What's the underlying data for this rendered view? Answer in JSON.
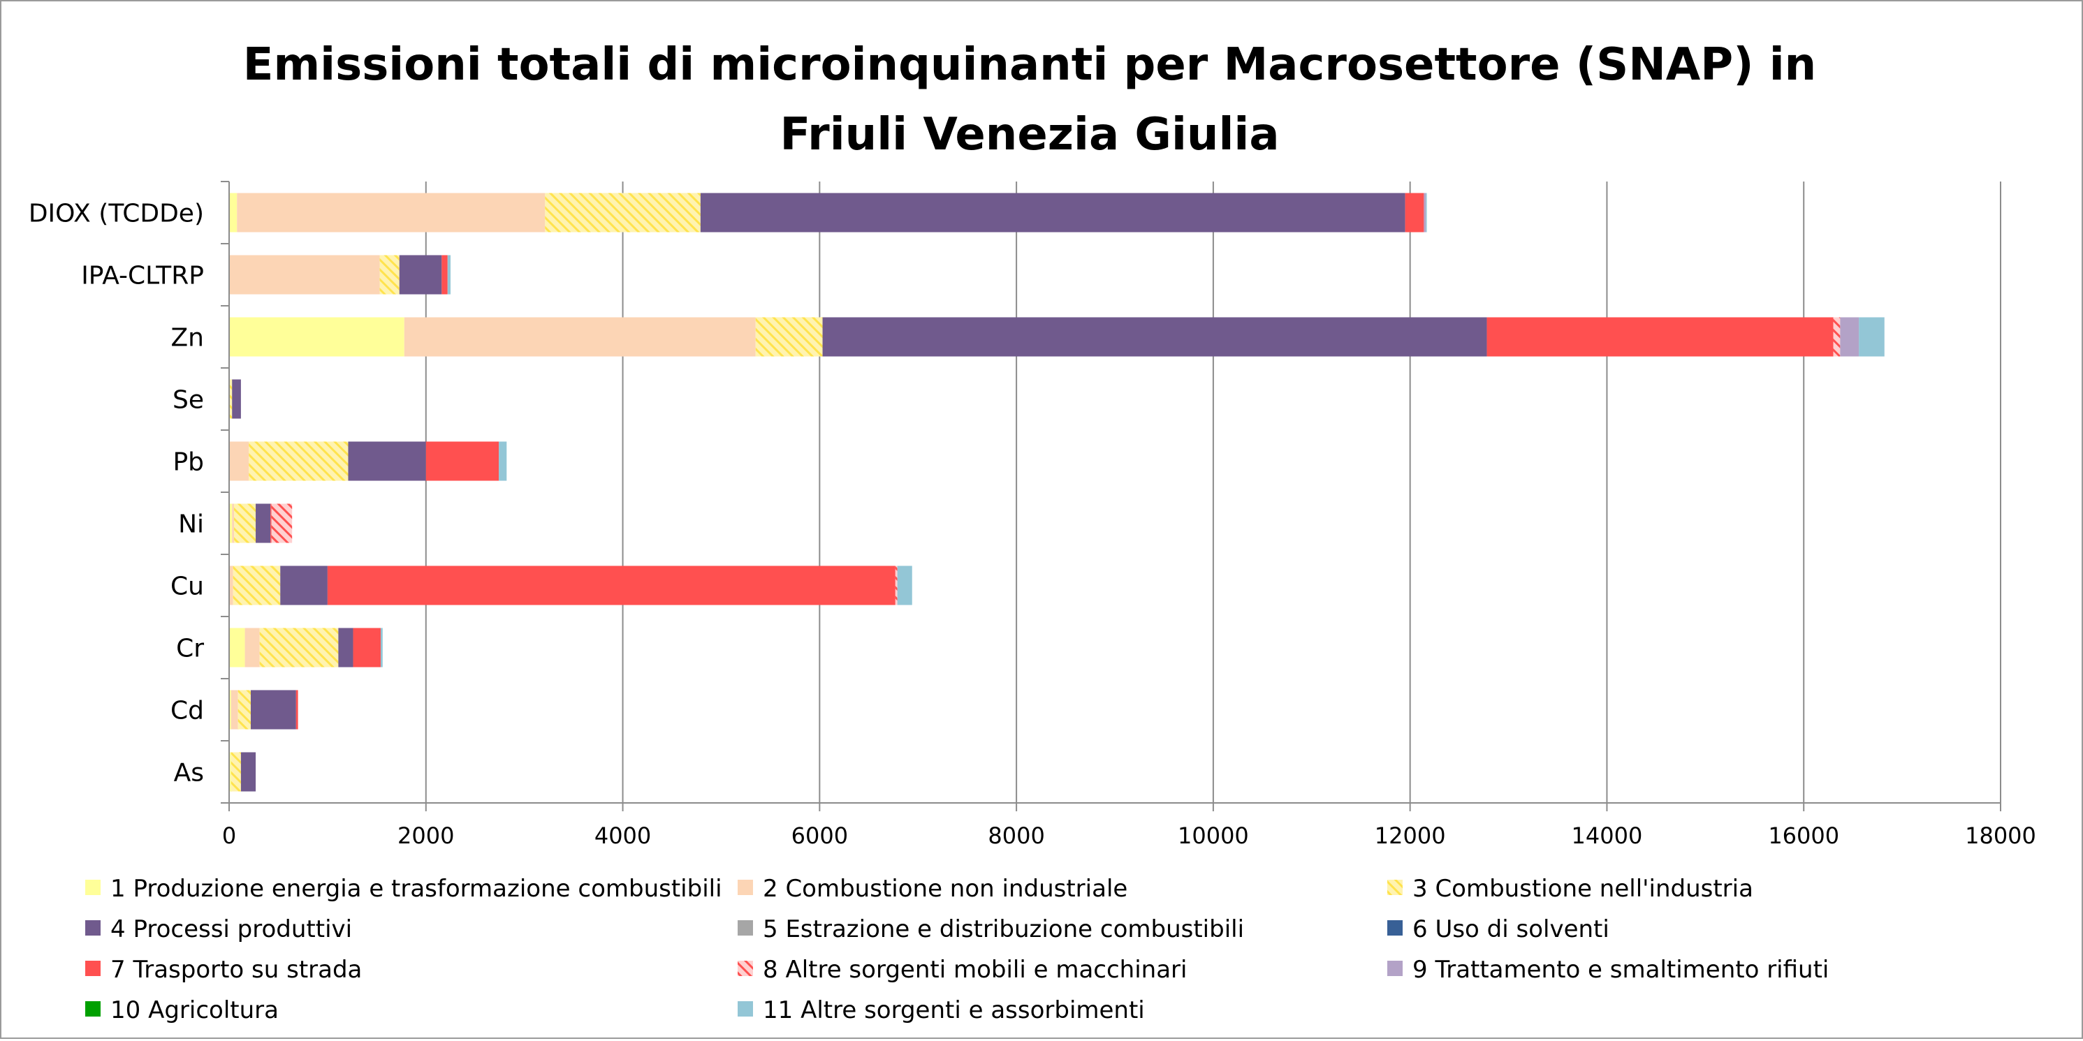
{
  "chart_data": {
    "type": "bar",
    "orientation": "horizontal",
    "stacked": true,
    "title": "Emissioni totali di microinquinanti per Macrosettore (SNAP) in Friuli Venezia Giulia",
    "title_lines": [
      "Emissioni totali di microinquinanti per Macrosettore (SNAP) in",
      "Friuli Venezia Giulia"
    ],
    "categories": [
      "DIOX (TCDDe)",
      "IPA-CLTRP",
      "Zn",
      "Se",
      "Pb",
      "Ni",
      "Cu",
      "Cr",
      "Cd",
      "As"
    ],
    "xlim": [
      0,
      18000
    ],
    "xticks": [
      0,
      2000,
      4000,
      6000,
      8000,
      10000,
      12000,
      14000,
      16000,
      18000
    ],
    "xtick_labels": [
      "0",
      "2000",
      "4000",
      "6000",
      "8000",
      "10000",
      "12000",
      "14000",
      "16000",
      "18000"
    ],
    "grid": "vertical",
    "legend_position": "bottom",
    "series": [
      {
        "name": "1 Produzione energia e trasformazione combustibili",
        "color": "#ffff99",
        "pattern": "solid",
        "values": [
          80,
          0,
          1780,
          0,
          0,
          30,
          0,
          160,
          20,
          20
        ]
      },
      {
        "name": "2 Combustione non industriale",
        "color": "#fcd5b5",
        "pattern": "solid",
        "values": [
          3130,
          1530,
          3570,
          0,
          200,
          20,
          40,
          150,
          70,
          0
        ]
      },
      {
        "name": "3 Combustione nell'industria",
        "color": "#ffe34d",
        "pattern": "hatch",
        "values": [
          1580,
          200,
          680,
          30,
          1010,
          220,
          480,
          800,
          130,
          100
        ]
      },
      {
        "name": "4 Processi produttivi",
        "color": "#705a8d",
        "pattern": "solid",
        "values": [
          7160,
          430,
          6750,
          90,
          790,
          150,
          480,
          150,
          460,
          150
        ]
      },
      {
        "name": "5 Estrazione e distribuzione combustibili",
        "color": "#a6a6a6",
        "pattern": "solid",
        "values": [
          0,
          0,
          0,
          0,
          0,
          0,
          0,
          0,
          0,
          0
        ]
      },
      {
        "name": "6 Uso di solventi",
        "color": "#386096",
        "pattern": "solid",
        "values": [
          0,
          0,
          0,
          0,
          0,
          0,
          0,
          0,
          0,
          0
        ]
      },
      {
        "name": "7 Trasporto su strada",
        "color": "#ff5050",
        "pattern": "solid",
        "values": [
          190,
          60,
          3520,
          0,
          740,
          10,
          5770,
          280,
          20,
          0
        ]
      },
      {
        "name": "8 Altre sorgenti mobili e macchinari",
        "color": "#ff5050",
        "pattern": "hatch",
        "values": [
          0,
          0,
          70,
          0,
          0,
          210,
          20,
          0,
          0,
          0
        ]
      },
      {
        "name": "9 Trattamento e smaltimento rifiuti",
        "color": "#b3a2c7",
        "pattern": "solid",
        "values": [
          20,
          0,
          190,
          0,
          0,
          0,
          0,
          0,
          0,
          0
        ]
      },
      {
        "name": "10 Agricoltura",
        "color": "#00a000",
        "pattern": "solid",
        "values": [
          0,
          0,
          0,
          0,
          0,
          0,
          0,
          0,
          0,
          0
        ]
      },
      {
        "name": "11 Altre sorgenti e assorbimenti",
        "color": "#93c6d6",
        "pattern": "solid",
        "values": [
          10,
          30,
          260,
          0,
          80,
          0,
          150,
          20,
          0,
          0
        ]
      }
    ]
  }
}
